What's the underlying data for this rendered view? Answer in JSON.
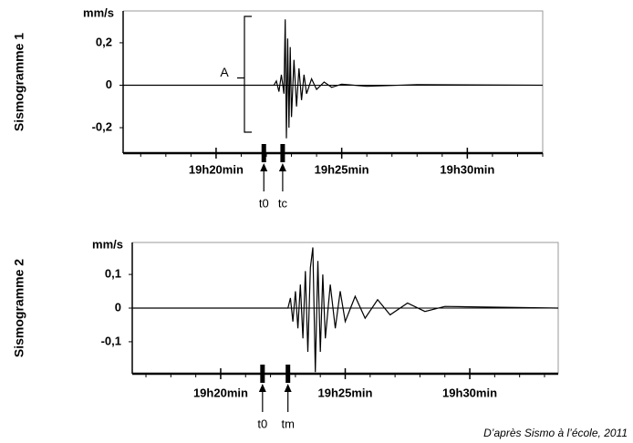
{
  "chart_data": [
    {
      "type": "line",
      "title": "Sismogramme 1",
      "y_label": "mm/s",
      "x": [
        16.3,
        22.3,
        22.4,
        22.5,
        22.6,
        22.7,
        22.75,
        22.8,
        22.85,
        22.9,
        22.95,
        23.0,
        23.1,
        23.2,
        23.3,
        23.4,
        23.5,
        23.6,
        23.8,
        24.0,
        24.3,
        24.6,
        25.0,
        26.0,
        28.0,
        33.0
      ],
      "series": [
        {
          "color": "#000000",
          "values": [
            0,
            0,
            0.02,
            -0.03,
            0.05,
            -0.04,
            0.31,
            -0.25,
            0.22,
            -0.2,
            0.18,
            -0.15,
            0.12,
            -0.1,
            0.08,
            -0.07,
            0.05,
            -0.04,
            0.03,
            -0.02,
            0.015,
            -0.01,
            0.005,
            -0.005,
            0.003,
            0
          ]
        }
      ],
      "xlim": [
        16.3,
        33.0
      ],
      "xticks": [
        {
          "value": 20,
          "label": "19h20min"
        },
        {
          "value": 25,
          "label": "19h25min"
        },
        {
          "value": 30,
          "label": "19h30min"
        }
      ],
      "ylim": [
        -0.32,
        0.35
      ],
      "yticks": [
        {
          "value": -0.2,
          "label": "-0,2"
        },
        0,
        {
          "value": 0.2,
          "label": "0,2"
        }
      ],
      "markers": [
        {
          "label": "t0",
          "x": 21.9
        },
        {
          "label": "tc",
          "x": 22.65
        }
      ],
      "annotation": "A"
    },
    {
      "type": "line",
      "title": "Sismogramme 2",
      "y_label": "mm/s",
      "x": [
        16.45,
        22.7,
        22.8,
        22.9,
        23.0,
        23.1,
        23.2,
        23.3,
        23.4,
        23.5,
        23.6,
        23.7,
        23.8,
        23.9,
        24.0,
        24.1,
        24.2,
        24.4,
        24.6,
        24.8,
        25.0,
        25.4,
        25.8,
        26.3,
        26.8,
        27.5,
        28.2,
        29.0,
        33.55
      ],
      "series": [
        {
          "color": "#000000",
          "values": [
            0,
            0,
            0.03,
            -0.04,
            0.05,
            -0.06,
            0.07,
            -0.09,
            0.11,
            -0.13,
            0.12,
            0.18,
            -0.19,
            0.14,
            -0.13,
            0.1,
            -0.09,
            0.07,
            -0.06,
            0.05,
            -0.04,
            0.035,
            -0.03,
            0.025,
            -0.02,
            0.015,
            -0.01,
            0.005,
            0
          ]
        }
      ],
      "xlim": [
        16.45,
        33.55
      ],
      "xticks": [
        {
          "value": 20,
          "label": "19h20min"
        },
        {
          "value": 25,
          "label": "19h25min"
        },
        {
          "value": 30,
          "label": "19h30min"
        }
      ],
      "ylim": [
        -0.195,
        0.195
      ],
      "yticks": [
        {
          "value": -0.1,
          "label": "-0,1"
        },
        0,
        {
          "value": 0.1,
          "label": "0,1"
        }
      ],
      "markers": [
        {
          "label": "t0",
          "x": 21.68
        },
        {
          "label": "tm",
          "x": 22.7
        }
      ]
    }
  ],
  "source": "D’après Sismo à l’école, 2011"
}
